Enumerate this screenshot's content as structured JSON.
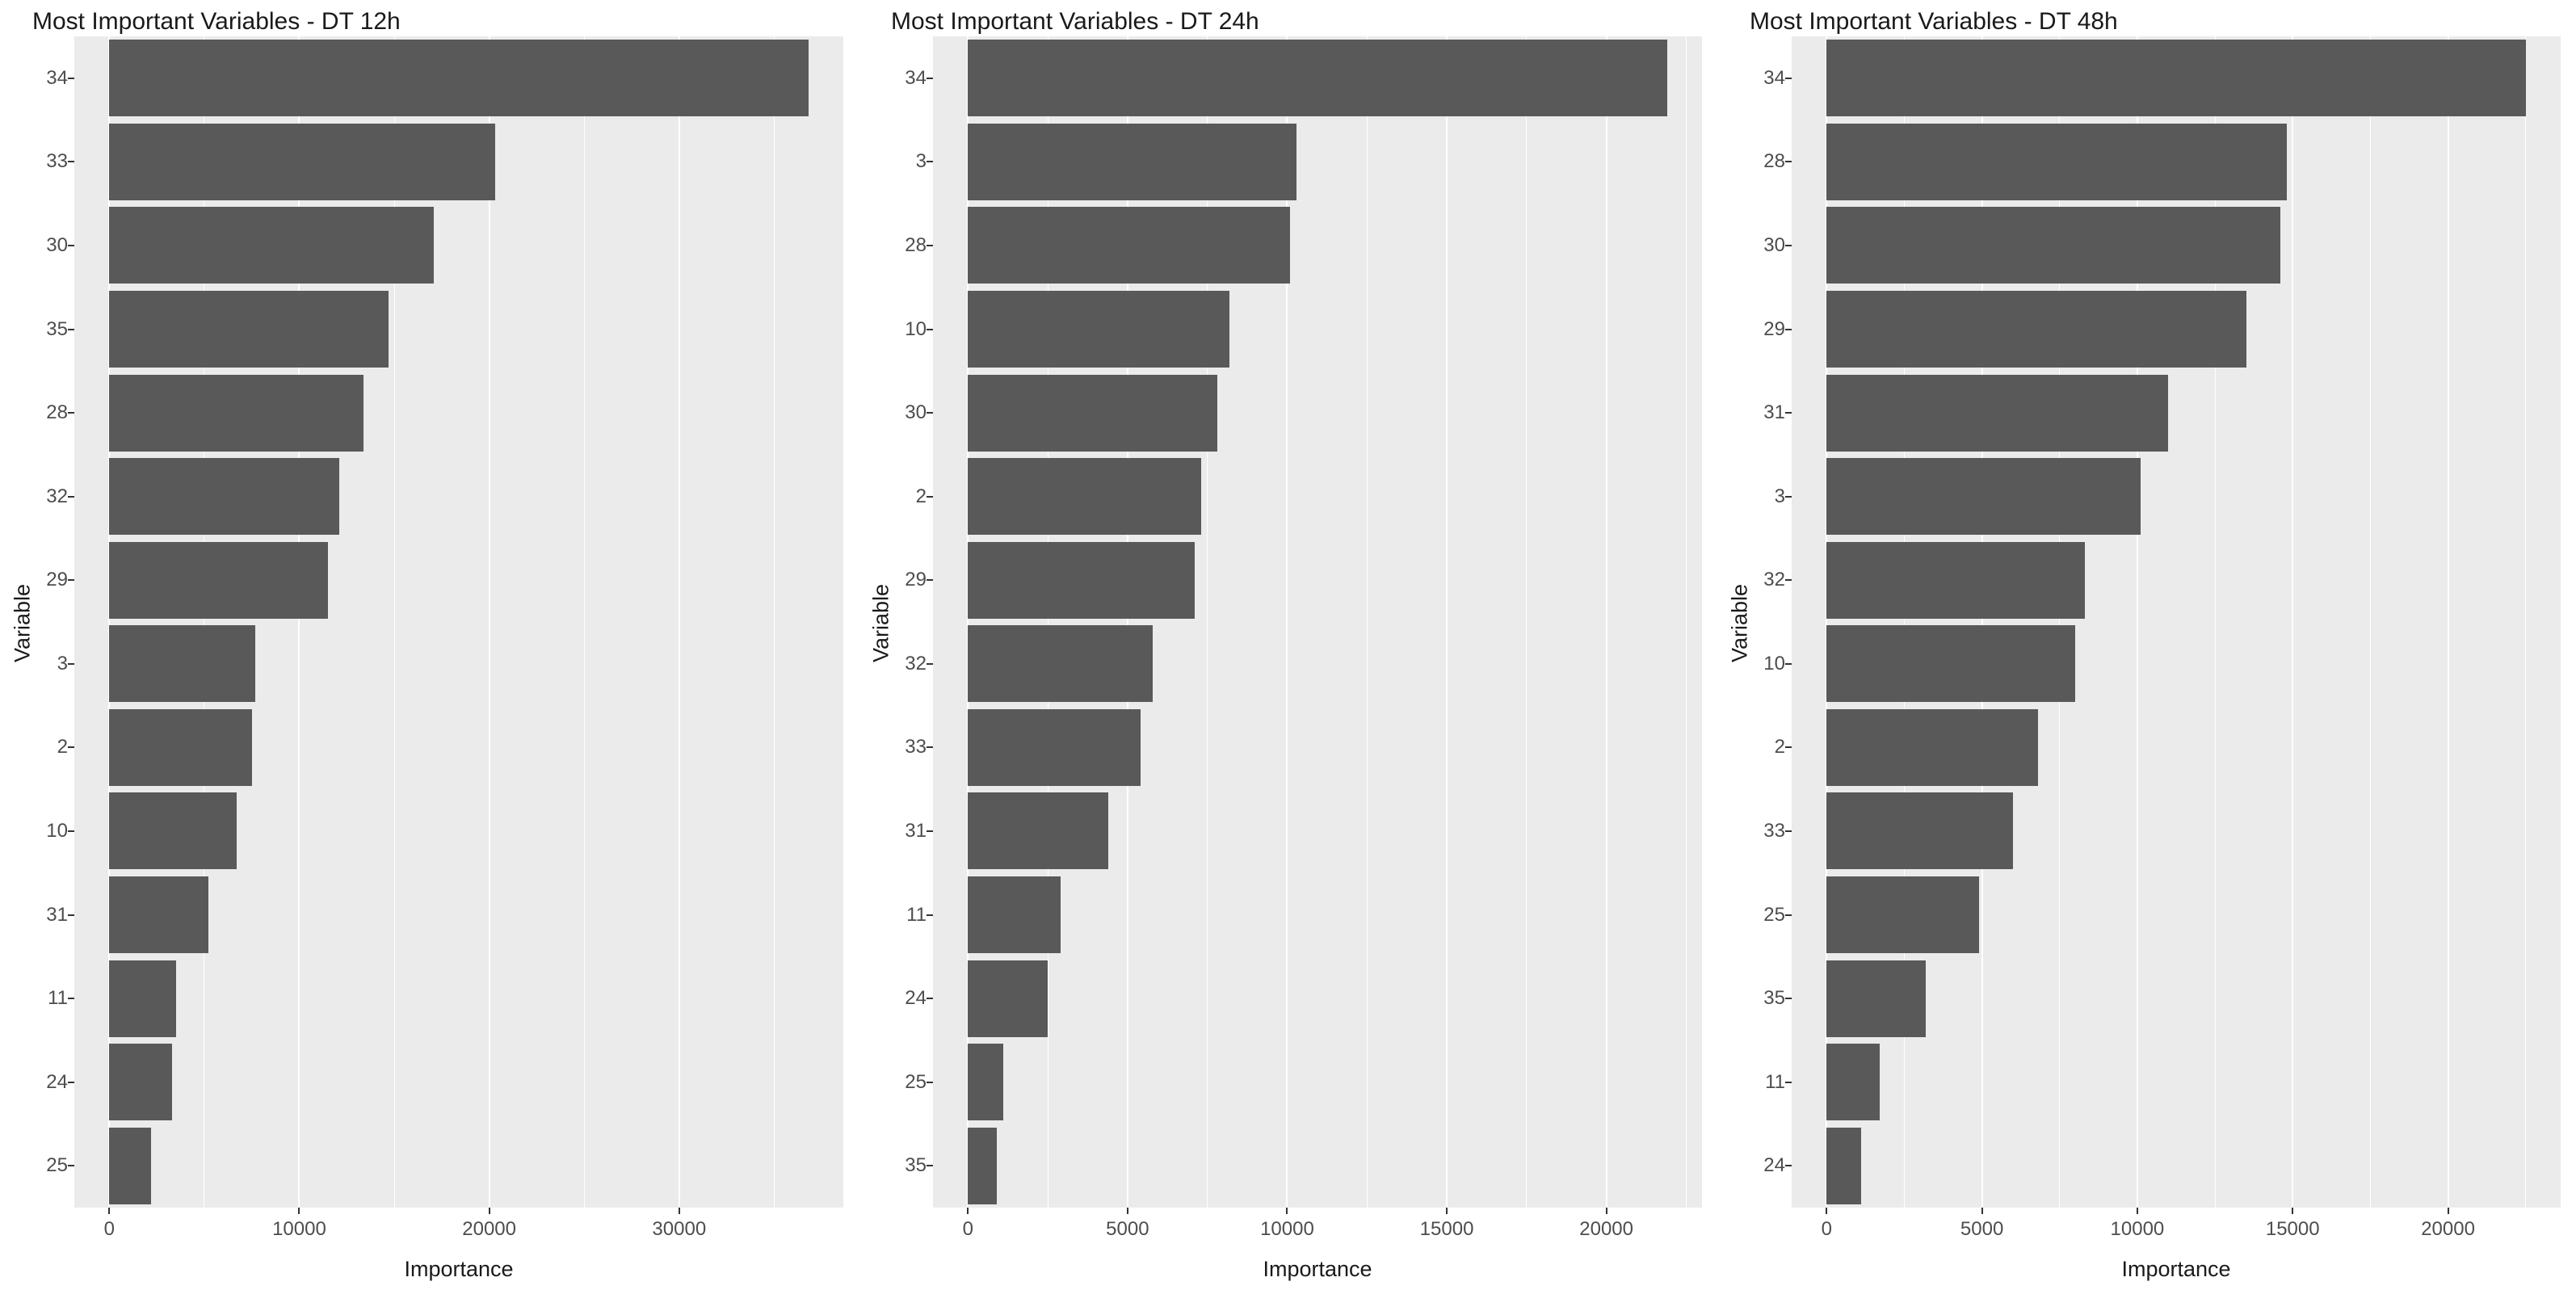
{
  "figure": {
    "background": "#ffffff",
    "style": {
      "bar_color": "#595959",
      "panel_bg": "#ebebeb",
      "grid_color": "#ffffff",
      "title_color": "#1a1a1a",
      "tick_label_color": "#4d4d4d",
      "tick_mark_color": "#333333"
    }
  },
  "chart_data": [
    {
      "type": "bar",
      "orientation": "horizontal",
      "title": "Most Important Variables - DT 12h",
      "xlabel": "Importance",
      "ylabel": "Variable",
      "categories": [
        "34",
        "33",
        "30",
        "35",
        "28",
        "32",
        "29",
        "3",
        "2",
        "10",
        "31",
        "11",
        "24",
        "25"
      ],
      "values": [
        36800,
        20300,
        17100,
        14700,
        13400,
        12100,
        11500,
        7700,
        7500,
        6700,
        5200,
        3500,
        3300,
        2200
      ],
      "xticks": [
        0,
        10000,
        20000,
        30000
      ],
      "xtick_labels": [
        "0",
        "10000",
        "20000",
        "30000"
      ],
      "minor_grid_step": 5000,
      "xlim": [
        -1840,
        38640
      ],
      "grid": "on",
      "legend": "none"
    },
    {
      "type": "bar",
      "orientation": "horizontal",
      "title": "Most Important Variables - DT 24h",
      "xlabel": "Importance",
      "ylabel": "Variable",
      "categories": [
        "34",
        "3",
        "28",
        "10",
        "30",
        "2",
        "29",
        "32",
        "33",
        "31",
        "11",
        "24",
        "25",
        "35"
      ],
      "values": [
        21900,
        10300,
        10100,
        8200,
        7800,
        7300,
        7100,
        5800,
        5400,
        4400,
        2900,
        2500,
        1100,
        900
      ],
      "xticks": [
        0,
        5000,
        10000,
        15000,
        20000
      ],
      "xtick_labels": [
        "0",
        "5000",
        "10000",
        "15000",
        "20000"
      ],
      "minor_grid_step": 2500,
      "xlim": [
        -1095,
        22995
      ],
      "grid": "on",
      "legend": "none"
    },
    {
      "type": "bar",
      "orientation": "horizontal",
      "title": "Most Important Variables - DT 48h",
      "xlabel": "Importance",
      "ylabel": "Variable",
      "categories": [
        "34",
        "28",
        "30",
        "29",
        "31",
        "3",
        "32",
        "10",
        "2",
        "33",
        "25",
        "35",
        "11",
        "24"
      ],
      "values": [
        22500,
        14800,
        14600,
        13500,
        11000,
        10100,
        8300,
        8000,
        6800,
        6000,
        4900,
        3200,
        1700,
        1100
      ],
      "xticks": [
        0,
        5000,
        10000,
        15000,
        20000
      ],
      "xtick_labels": [
        "0",
        "5000",
        "10000",
        "15000",
        "20000"
      ],
      "minor_grid_step": 2500,
      "xlim": [
        -1125,
        23625
      ],
      "grid": "on",
      "legend": "none"
    }
  ]
}
